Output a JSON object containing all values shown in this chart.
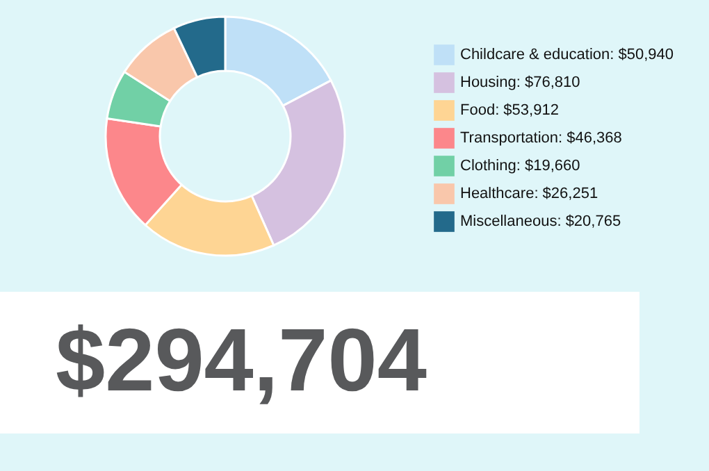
{
  "chart_data": {
    "type": "donut",
    "categories": [
      "Childcare & education",
      "Housing",
      "Food",
      "Transportation",
      "Clothing",
      "Healthcare",
      "Miscellaneous"
    ],
    "values": [
      50940,
      76810,
      53912,
      46368,
      19660,
      26251,
      20765
    ],
    "value_labels": [
      "$50,940",
      "$76,810",
      "$53,912",
      "$46,368",
      "$19,660",
      "$26,251",
      "$20,765"
    ],
    "colors": [
      "#bfe0f7",
      "#d5c1e0",
      "#fed594",
      "#fc878b",
      "#71d0a6",
      "#f9c7ab",
      "#236a8b"
    ],
    "legend": "right",
    "annotations": [
      "$294,704"
    ]
  }
}
